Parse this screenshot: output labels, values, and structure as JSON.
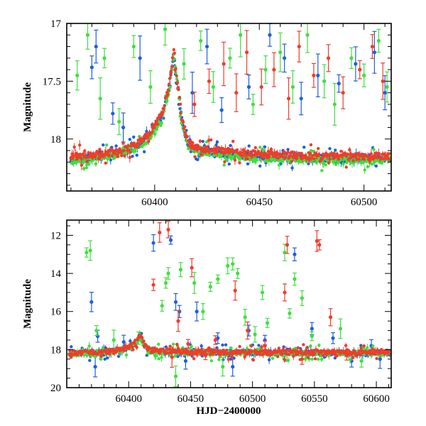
{
  "chart_data": [
    {
      "type": "scatter",
      "title": "",
      "xlabel": "",
      "ylabel": "Magnitude",
      "xlim": [
        60358,
        60513
      ],
      "ylim": [
        18.45,
        17.0
      ],
      "y_inverted": true,
      "x_ticks": [
        60400,
        60450,
        60500
      ],
      "x_tick_labels": [
        "60400",
        "60450",
        "60500"
      ],
      "y_ticks": [
        17,
        17.5,
        18
      ],
      "y_tick_labels": [
        "17",
        "17.5",
        "18"
      ],
      "grid": false,
      "legend": "none",
      "series": [
        {
          "color": "#1f5fe0",
          "baseline": [
            [
              60360,
              18.18
            ],
            [
              60370,
              18.16
            ],
            [
              60380,
              18.13
            ],
            [
              60390,
              18.08
            ],
            [
              60395,
              18.02
            ],
            [
              60400,
              17.92
            ],
            [
              60404,
              17.78
            ],
            [
              60407,
              17.55
            ],
            [
              60409,
              17.27
            ],
            [
              60411,
              17.55
            ],
            [
              60413,
              17.85
            ],
            [
              60416,
              18.05
            ],
            [
              60420,
              18.1
            ],
            [
              60440,
              18.14
            ],
            [
              60460,
              18.16
            ],
            [
              60480,
              18.17
            ],
            [
              60500,
              18.17
            ],
            [
              60512,
              18.17
            ]
          ],
          "outliers": [
            [
              60370,
              17.38
            ],
            [
              60372,
              17.2
            ],
            [
              60380,
              17.78
            ],
            [
              60385,
              17.9
            ],
            [
              60393,
              17.3
            ],
            [
              60418,
              17.6
            ],
            [
              60425,
              17.2
            ],
            [
              60432,
              17.75
            ],
            [
              60445,
              17.55
            ],
            [
              60455,
              17.1
            ],
            [
              60462,
              17.3
            ],
            [
              60470,
              17.65
            ],
            [
              60478,
              17.45
            ],
            [
              60488,
              17.52
            ],
            [
              60496,
              17.35
            ],
            [
              60505,
              17.25
            ],
            [
              60510,
              17.6
            ]
          ]
        },
        {
          "color": "#3de03d",
          "baseline": [
            [
              60360,
              18.19
            ],
            [
              60370,
              18.17
            ],
            [
              60380,
              18.14
            ],
            [
              60390,
              18.09
            ],
            [
              60395,
              18.03
            ],
            [
              60400,
              17.93
            ],
            [
              60404,
              17.79
            ],
            [
              60407,
              17.56
            ],
            [
              60409,
              17.28
            ],
            [
              60411,
              17.56
            ],
            [
              60413,
              17.86
            ],
            [
              60416,
              18.06
            ],
            [
              60420,
              18.11
            ],
            [
              60440,
              18.15
            ],
            [
              60460,
              18.17
            ],
            [
              60480,
              18.18
            ],
            [
              60500,
              18.18
            ],
            [
              60512,
              18.18
            ]
          ],
          "outliers": [
            [
              60363,
              17.45
            ],
            [
              60368,
              17.1
            ],
            [
              60374,
              17.65
            ],
            [
              60376,
              17.3
            ],
            [
              60383,
              17.85
            ],
            [
              60390,
              17.2
            ],
            [
              60398,
              17.55
            ],
            [
              60405,
              17.05
            ],
            [
              60414,
              17.35
            ],
            [
              60422,
              17.15
            ],
            [
              60428,
              17.55
            ],
            [
              60436,
              17.3
            ],
            [
              60441,
              17.1
            ],
            [
              60447,
              17.7
            ],
            [
              60453,
              17.4
            ],
            [
              60460,
              17.25
            ],
            [
              60466,
              17.55
            ],
            [
              60473,
              17.1
            ],
            [
              60481,
              17.5
            ],
            [
              60486,
              17.7
            ],
            [
              60494,
              17.3
            ],
            [
              60500,
              17.45
            ],
            [
              60507,
              17.15
            ],
            [
              60511,
              17.55
            ]
          ]
        },
        {
          "color": "#f03c2a",
          "baseline": [
            [
              60360,
              18.15
            ],
            [
              60370,
              18.14
            ],
            [
              60380,
              18.12
            ],
            [
              60390,
              18.06
            ],
            [
              60395,
              18.0
            ],
            [
              60400,
              17.9
            ],
            [
              60404,
              17.76
            ],
            [
              60407,
              17.53
            ],
            [
              60409,
              17.25
            ],
            [
              60411,
              17.53
            ],
            [
              60413,
              17.83
            ],
            [
              60416,
              18.03
            ],
            [
              60420,
              18.08
            ],
            [
              60440,
              18.12
            ],
            [
              60460,
              18.14
            ],
            [
              60480,
              18.15
            ],
            [
              60500,
              18.15
            ],
            [
              60512,
              18.15
            ]
          ],
          "outliers": [
            [
              60419,
              17.7
            ],
            [
              60426,
              17.5
            ],
            [
              60433,
              17.35
            ],
            [
              60439,
              17.6
            ],
            [
              60444,
              17.25
            ],
            [
              60451,
              17.55
            ],
            [
              60457,
              17.4
            ],
            [
              60464,
              17.65
            ],
            [
              60469,
              17.2
            ],
            [
              60476,
              17.45
            ],
            [
              60483,
              17.3
            ],
            [
              60490,
              17.6
            ],
            [
              60498,
              17.4
            ],
            [
              60504,
              17.2
            ],
            [
              60509,
              17.5
            ]
          ]
        }
      ]
    },
    {
      "type": "scatter",
      "title": "",
      "xlabel": "HJD−2400000",
      "ylabel": "Magnitude",
      "xlim": [
        60350,
        60612
      ],
      "ylim": [
        20.0,
        11.2
      ],
      "y_inverted": true,
      "x_ticks": [
        60400,
        60450,
        60500,
        60550,
        60600
      ],
      "x_tick_labels": [
        "60400",
        "60450",
        "60500",
        "60550",
        "60600"
      ],
      "y_ticks": [
        12,
        14,
        16,
        18,
        20
      ],
      "y_tick_labels": [
        "12",
        "14",
        "16",
        "18",
        "20"
      ],
      "grid": false,
      "legend": "none",
      "series": [
        {
          "color": "#1f5fe0",
          "baseline": [
            [
              60360,
              18.18
            ],
            [
              60380,
              18.13
            ],
            [
              60395,
              18.02
            ],
            [
              60403,
              17.8
            ],
            [
              60407,
              17.55
            ],
            [
              60409,
              17.27
            ],
            [
              60411,
              17.55
            ],
            [
              60414,
              17.9
            ],
            [
              60418,
              18.08
            ],
            [
              60450,
              18.15
            ],
            [
              60500,
              18.17
            ],
            [
              60550,
              18.17
            ],
            [
              60605,
              18.17
            ]
          ],
          "outliers": [
            [
              60370,
              15.5
            ],
            [
              60373,
              18.9
            ],
            [
              60375,
              17.3
            ],
            [
              60396,
              17.6
            ],
            [
              60420,
              12.4
            ],
            [
              60434,
              12.25
            ],
            [
              60438,
              15.5
            ],
            [
              60441,
              16.0
            ],
            [
              60446,
              18.6
            ],
            [
              60455,
              16.0
            ],
            [
              60472,
              17.4
            ],
            [
              60484,
              18.9
            ],
            [
              60497,
              17.0
            ],
            [
              60510,
              17.5
            ],
            [
              60534,
              13.0
            ],
            [
              60548,
              16.9
            ],
            [
              60565,
              17.4
            ],
            [
              60580,
              18.6
            ],
            [
              60596,
              17.8
            ],
            [
              60603,
              18.5
            ]
          ]
        },
        {
          "color": "#3de03d",
          "baseline": [
            [
              60360,
              18.2
            ],
            [
              60380,
              18.15
            ],
            [
              60395,
              18.04
            ],
            [
              60403,
              17.82
            ],
            [
              60407,
              17.57
            ],
            [
              60409,
              17.29
            ],
            [
              60411,
              17.57
            ],
            [
              60414,
              17.92
            ],
            [
              60418,
              18.1
            ],
            [
              60450,
              18.17
            ],
            [
              60500,
              18.19
            ],
            [
              60550,
              18.19
            ],
            [
              60605,
              18.19
            ]
          ],
          "outliers": [
            [
              60366,
              12.9
            ],
            [
              60369,
              12.8
            ],
            [
              60374,
              17.0
            ],
            [
              60388,
              17.5
            ],
            [
              60408,
              17.4
            ],
            [
              60427,
              15.7
            ],
            [
              60430,
              14.5
            ],
            [
              60432,
              14.0
            ],
            [
              60438,
              19.4
            ],
            [
              60442,
              13.8
            ],
            [
              60453,
              14.5
            ],
            [
              60460,
              16.0
            ],
            [
              60466,
              14.7
            ],
            [
              60472,
              14.3
            ],
            [
              60476,
              18.9
            ],
            [
              60480,
              13.6
            ],
            [
              60484,
              13.5
            ],
            [
              60488,
              14.0
            ],
            [
              60494,
              16.3
            ],
            [
              60502,
              17.2
            ],
            [
              60508,
              15.0
            ],
            [
              60512,
              16.6
            ],
            [
              60526,
              12.9
            ],
            [
              60530,
              16.1
            ],
            [
              60534,
              14.3
            ],
            [
              60540,
              15.3
            ],
            [
              60548,
              17.3
            ],
            [
              60571,
              16.9
            ],
            [
              60588,
              18.6
            ]
          ]
        },
        {
          "color": "#f03c2a",
          "baseline": [
            [
              60360,
              18.16
            ],
            [
              60380,
              18.11
            ],
            [
              60395,
              18.0
            ],
            [
              60403,
              17.78
            ],
            [
              60407,
              17.53
            ],
            [
              60409,
              17.25
            ],
            [
              60411,
              17.53
            ],
            [
              60414,
              17.88
            ],
            [
              60418,
              18.06
            ],
            [
              60450,
              18.13
            ],
            [
              60500,
              18.15
            ],
            [
              60550,
              18.15
            ],
            [
              60605,
              18.15
            ]
          ],
          "outliers": [
            [
              60420,
              14.6
            ],
            [
              60425,
              11.85
            ],
            [
              60432,
              11.7
            ],
            [
              60435,
              18.4
            ],
            [
              60440,
              16.5
            ],
            [
              60448,
              17.7
            ],
            [
              60451,
              13.7
            ],
            [
              60462,
              18.3
            ],
            [
              60470,
              17.5
            ],
            [
              60486,
              14.9
            ],
            [
              60496,
              17.0
            ],
            [
              60510,
              17.8
            ],
            [
              60526,
              15.0
            ],
            [
              60528,
              12.5
            ],
            [
              60540,
              18.5
            ],
            [
              60552,
              12.3
            ],
            [
              60554,
              12.5
            ],
            [
              60563,
              16.3
            ],
            [
              60576,
              18.3
            ]
          ]
        }
      ]
    }
  ]
}
